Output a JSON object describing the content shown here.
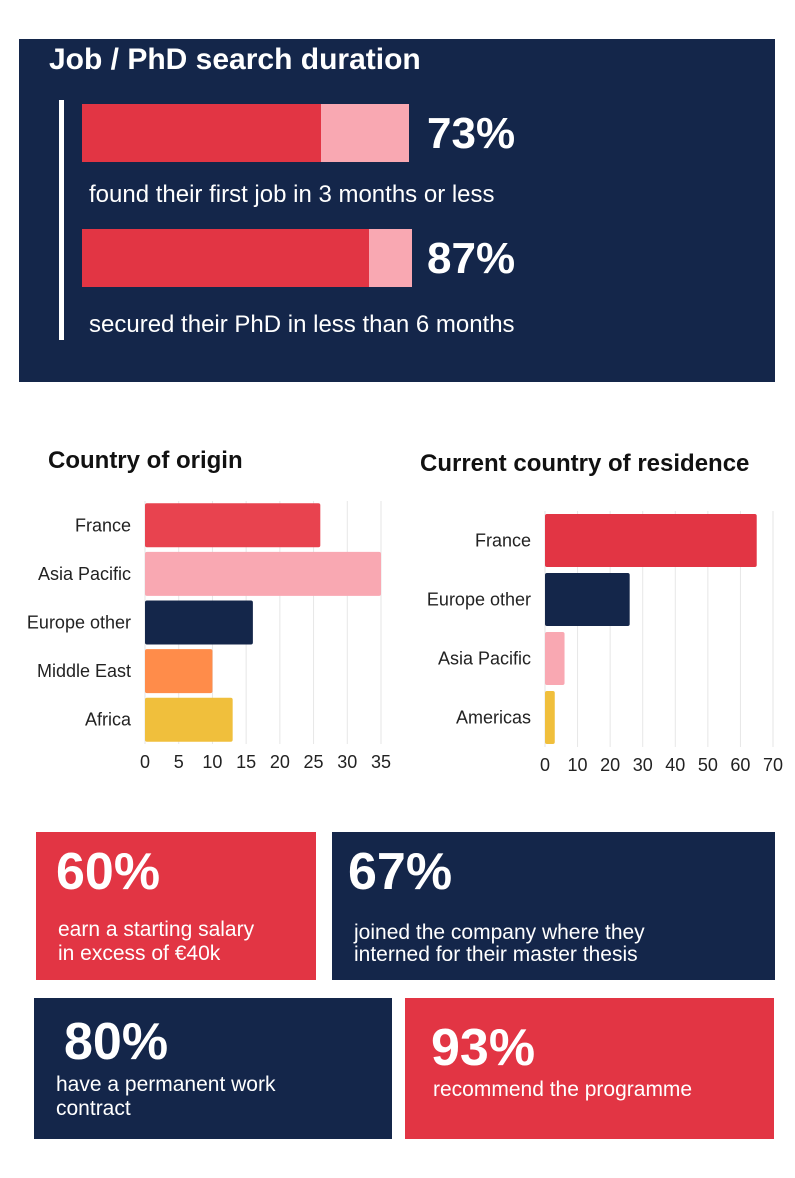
{
  "colors": {
    "red": "#e23544",
    "pink": "#f9a8b2",
    "navy": "#14264a",
    "orange": "#ff8c4a",
    "yellow": "#f0bf3c"
  },
  "search_duration": {
    "title": "Job / PhD search duration",
    "items": [
      {
        "value": "73%",
        "fraction": 0.73,
        "description": "found their first job in 3 months or less"
      },
      {
        "value": "87%",
        "fraction": 0.87,
        "description": "secured their PhD in less than 6 months"
      }
    ]
  },
  "chart_data": [
    {
      "type": "bar",
      "orientation": "horizontal",
      "title": "Country of origin",
      "categories": [
        "France",
        "Asia Pacific",
        "Europe other",
        "Middle East",
        "Africa"
      ],
      "values": [
        26,
        35,
        16,
        10,
        13
      ],
      "colors": [
        "#e8434f",
        "#f9a8b2",
        "#14264a",
        "#ff8c4a",
        "#f0bf3c"
      ],
      "xlim": [
        0,
        35
      ],
      "xticks": [
        0,
        5,
        10,
        15,
        20,
        25,
        30,
        35
      ],
      "grid": true
    },
    {
      "type": "bar",
      "orientation": "horizontal",
      "title": "Current country of residence",
      "categories": [
        "France",
        "Europe other",
        "Asia Pacific",
        "Americas"
      ],
      "values": [
        65,
        26,
        6,
        3
      ],
      "colors": [
        "#e23544",
        "#14264a",
        "#f9a8b2",
        "#f0bf3c"
      ],
      "xlim": [
        0,
        70
      ],
      "xticks": [
        0,
        10,
        20,
        30,
        40,
        50,
        60,
        70
      ],
      "grid": true
    }
  ],
  "cards": [
    {
      "value": "60%",
      "line1": "earn a starting salary",
      "line2": "in excess of €40k"
    },
    {
      "value": "67%",
      "line1": "joined the company where they",
      "line2": "interned for their master thesis"
    },
    {
      "value": "80%",
      "line1": "have a permanent work",
      "line2": "contract"
    },
    {
      "value": "93%",
      "line1": "recommend the programme",
      "line2": ""
    }
  ]
}
